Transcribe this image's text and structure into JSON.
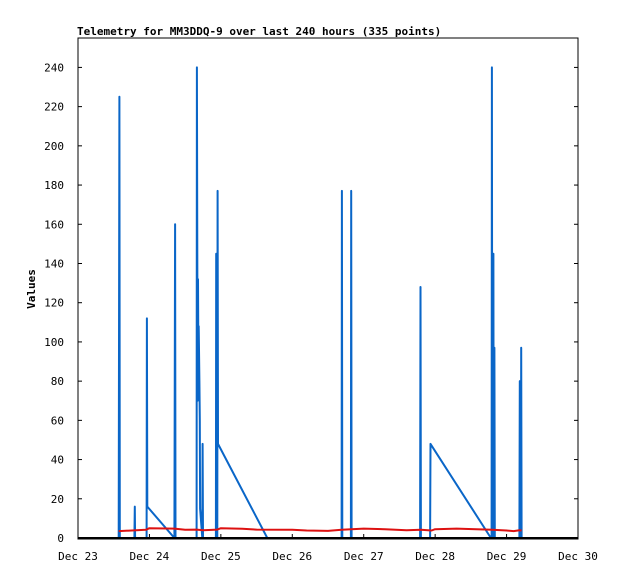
{
  "chart_data": {
    "type": "line",
    "title": "Telemetry for MM3DDQ-9 over last 240 hours (335 points)",
    "xlabel": "",
    "ylabel": "Values",
    "x_ticks": [
      "Dec 23",
      "Dec 24",
      "Dec 25",
      "Dec 26",
      "Dec 27",
      "Dec 28",
      "Dec 29",
      "Dec 30"
    ],
    "y_ticks": [
      0,
      20,
      40,
      60,
      80,
      100,
      120,
      140,
      160,
      180,
      200,
      220,
      240
    ],
    "xlim_days": [
      0,
      7
    ],
    "ylim": [
      0,
      255
    ],
    "grid": false,
    "colors": {
      "series_blue": "#0a66c8",
      "series_red": "#dd1111",
      "baseline": "#000000"
    },
    "series": [
      {
        "color": "#0a66c8",
        "points": [
          [
            0.57,
            0
          ],
          [
            0.58,
            225
          ],
          [
            0.585,
            0
          ],
          [
            0.79,
            0
          ],
          [
            0.795,
            16
          ],
          [
            0.8,
            0
          ],
          [
            0.96,
            0
          ],
          [
            0.965,
            112
          ],
          [
            0.97,
            16
          ],
          [
            1.35,
            0
          ],
          [
            1.36,
            160
          ],
          [
            1.365,
            0
          ],
          [
            1.66,
            0
          ],
          [
            1.665,
            240
          ],
          [
            1.67,
            145
          ],
          [
            1.675,
            70
          ],
          [
            1.68,
            132
          ],
          [
            1.685,
            90
          ],
          [
            1.69,
            108
          ],
          [
            1.7,
            80
          ],
          [
            1.705,
            60
          ],
          [
            1.71,
            15
          ],
          [
            1.74,
            0
          ],
          [
            1.745,
            48
          ],
          [
            1.75,
            0
          ],
          [
            1.93,
            0
          ],
          [
            1.935,
            145
          ],
          [
            1.94,
            0
          ],
          [
            1.95,
            0
          ],
          [
            1.955,
            177
          ],
          [
            1.96,
            48
          ],
          [
            2.65,
            0
          ],
          [
            2.7,
            0
          ],
          [
            3.69,
            0
          ],
          [
            3.695,
            177
          ],
          [
            3.7,
            0
          ],
          [
            3.82,
            0
          ],
          [
            3.825,
            177
          ],
          [
            3.83,
            0
          ],
          [
            4.79,
            0
          ],
          [
            4.795,
            128
          ],
          [
            4.8,
            0
          ],
          [
            4.93,
            0
          ],
          [
            4.935,
            48
          ],
          [
            5.78,
            0
          ],
          [
            5.79,
            0
          ],
          [
            5.795,
            240
          ],
          [
            5.8,
            0
          ],
          [
            5.81,
            0
          ],
          [
            5.815,
            145
          ],
          [
            5.82,
            0
          ],
          [
            5.825,
            0
          ],
          [
            5.83,
            97
          ],
          [
            5.835,
            0
          ],
          [
            6.18,
            0
          ],
          [
            6.185,
            80
          ],
          [
            6.19,
            0
          ],
          [
            6.2,
            0
          ],
          [
            6.205,
            97
          ],
          [
            6.21,
            0
          ]
        ]
      },
      {
        "color": "#dd1111",
        "points": [
          [
            0.57,
            3.5
          ],
          [
            0.75,
            3.8
          ],
          [
            0.95,
            4.2
          ],
          [
            1.0,
            5.0
          ],
          [
            1.35,
            4.8
          ],
          [
            1.5,
            4.2
          ],
          [
            1.66,
            4.3
          ],
          [
            1.75,
            4.0
          ],
          [
            1.95,
            4.3
          ],
          [
            2.0,
            5.0
          ],
          [
            2.3,
            4.7
          ],
          [
            2.5,
            4.3
          ],
          [
            3.0,
            4.2
          ],
          [
            3.2,
            3.8
          ],
          [
            3.5,
            3.6
          ],
          [
            3.69,
            4.2
          ],
          [
            4.0,
            4.8
          ],
          [
            4.3,
            4.5
          ],
          [
            4.6,
            4.0
          ],
          [
            4.8,
            4.2
          ],
          [
            4.95,
            3.8
          ],
          [
            5.0,
            4.5
          ],
          [
            5.3,
            4.8
          ],
          [
            5.8,
            4.2
          ],
          [
            6.0,
            3.8
          ],
          [
            6.1,
            3.5
          ],
          [
            6.18,
            4.0
          ],
          [
            6.21,
            3.8
          ]
        ]
      }
    ]
  }
}
